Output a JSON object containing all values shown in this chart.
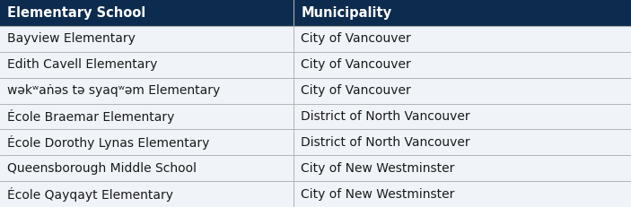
{
  "header": [
    "Elementary School",
    "Municipality"
  ],
  "rows": [
    [
      "Bayview Elementary",
      "City of Vancouver"
    ],
    [
      "Edith Cavell Elementary",
      "City of Vancouver"
    ],
    [
      "wəkʷaṅəs tə syaqʷəm Elementary",
      "City of Vancouver"
    ],
    [
      "École Braemar Elementary",
      "District of North Vancouver"
    ],
    [
      "École Dorothy Lynas Elementary",
      "District of North Vancouver"
    ],
    [
      "Queensborough Middle School",
      "City of New Westminster"
    ],
    [
      "École Qayqayt Elementary",
      "City of New Westminster"
    ]
  ],
  "header_bg": "#0d2b4e",
  "header_text_color": "#ffffff",
  "row_bg": "#f0f4f8",
  "border_color": "#aaaaaa",
  "text_color": "#1a1a1a",
  "col_split": 0.465,
  "header_fontsize": 10.5,
  "row_fontsize": 10,
  "fig_width": 7.03,
  "fig_height": 2.31,
  "dpi": 100
}
